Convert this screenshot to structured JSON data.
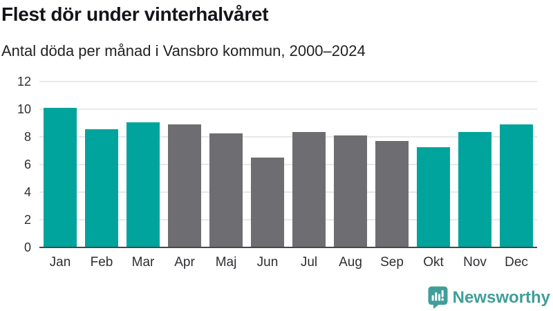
{
  "header": {
    "title": "Flest dör under vinterhalvåret",
    "subtitle": "Antal döda per månad i Vansbro kommun, 2000–2024"
  },
  "chart_data": {
    "type": "bar",
    "title": "Flest dör under vinterhalvåret",
    "subtitle": "Antal döda per månad i Vansbro kommun, 2000–2024",
    "xlabel": "",
    "ylabel": "",
    "categories": [
      "Jan",
      "Feb",
      "Mar",
      "Apr",
      "Maj",
      "Jun",
      "Jul",
      "Aug",
      "Sep",
      "Okt",
      "Nov",
      "Dec"
    ],
    "values": [
      10.1,
      8.55,
      9.05,
      8.9,
      8.25,
      6.5,
      8.35,
      8.1,
      7.7,
      7.25,
      8.35,
      8.9
    ],
    "bar_groups": [
      "winter",
      "winter",
      "winter",
      "summer",
      "summer",
      "summer",
      "summer",
      "summer",
      "summer",
      "winter",
      "winter",
      "winter"
    ],
    "y_ticks": [
      0,
      2,
      4,
      6,
      8,
      10,
      12
    ],
    "ylim": [
      0,
      12
    ],
    "grid": "horizontal",
    "legend": "none"
  },
  "colors": {
    "winter": "#00a49c",
    "summer": "#6e6d72",
    "gridline": "#e8e8e8",
    "axis_line": "#46464b",
    "logo": "#3f9e9a"
  },
  "footer": {
    "brand": "Newsworthy"
  }
}
